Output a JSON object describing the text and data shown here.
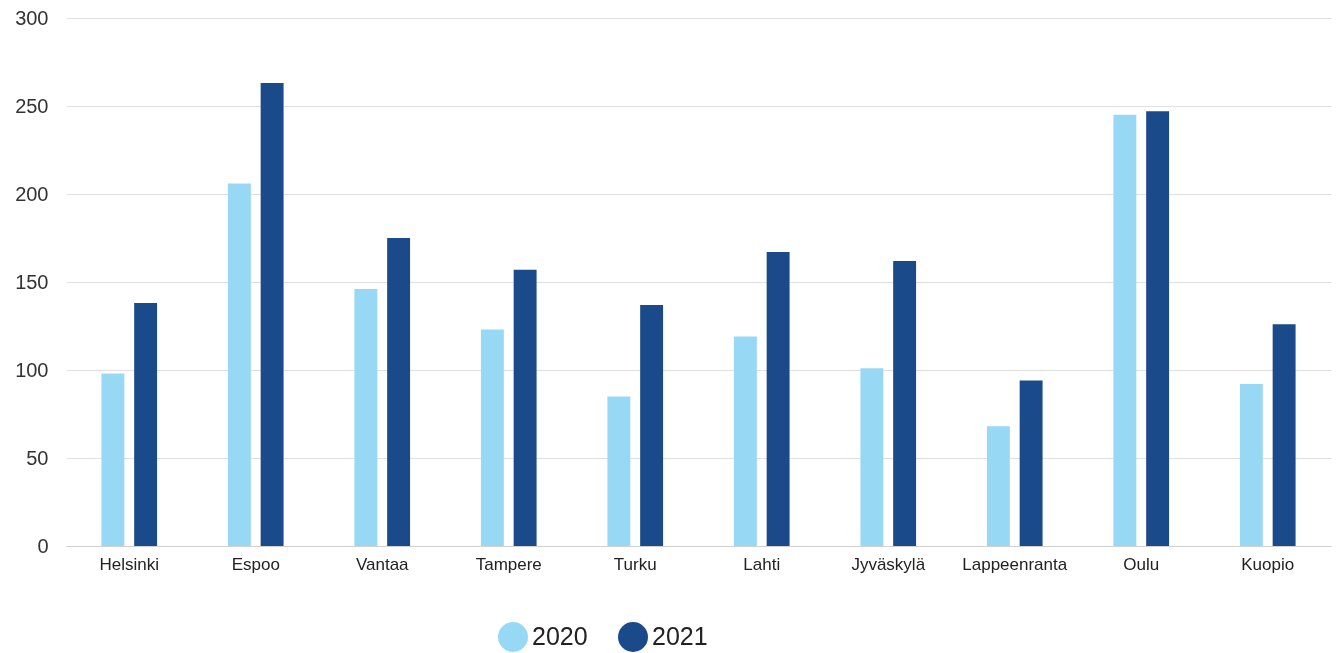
{
  "chart_data": {
    "type": "bar",
    "categories": [
      "Helsinki",
      "Espoo",
      "Vantaa",
      "Tampere",
      "Turku",
      "Lahti",
      "Jyväskylä",
      "Lappeenranta",
      "Oulu",
      "Kuopio"
    ],
    "series": [
      {
        "name": "2020",
        "color": "#97d9f5",
        "values": [
          98,
          206,
          146,
          123,
          85,
          119,
          101,
          68,
          245,
          92
        ]
      },
      {
        "name": "2021",
        "color": "#1a4a8a",
        "values": [
          138,
          263,
          175,
          157,
          137,
          167,
          162,
          94,
          247,
          126
        ]
      }
    ],
    "ylim": [
      0,
      300
    ],
    "yticks": [
      0,
      50,
      100,
      150,
      200,
      250,
      300
    ],
    "grid": "y",
    "legend": "bottom"
  }
}
